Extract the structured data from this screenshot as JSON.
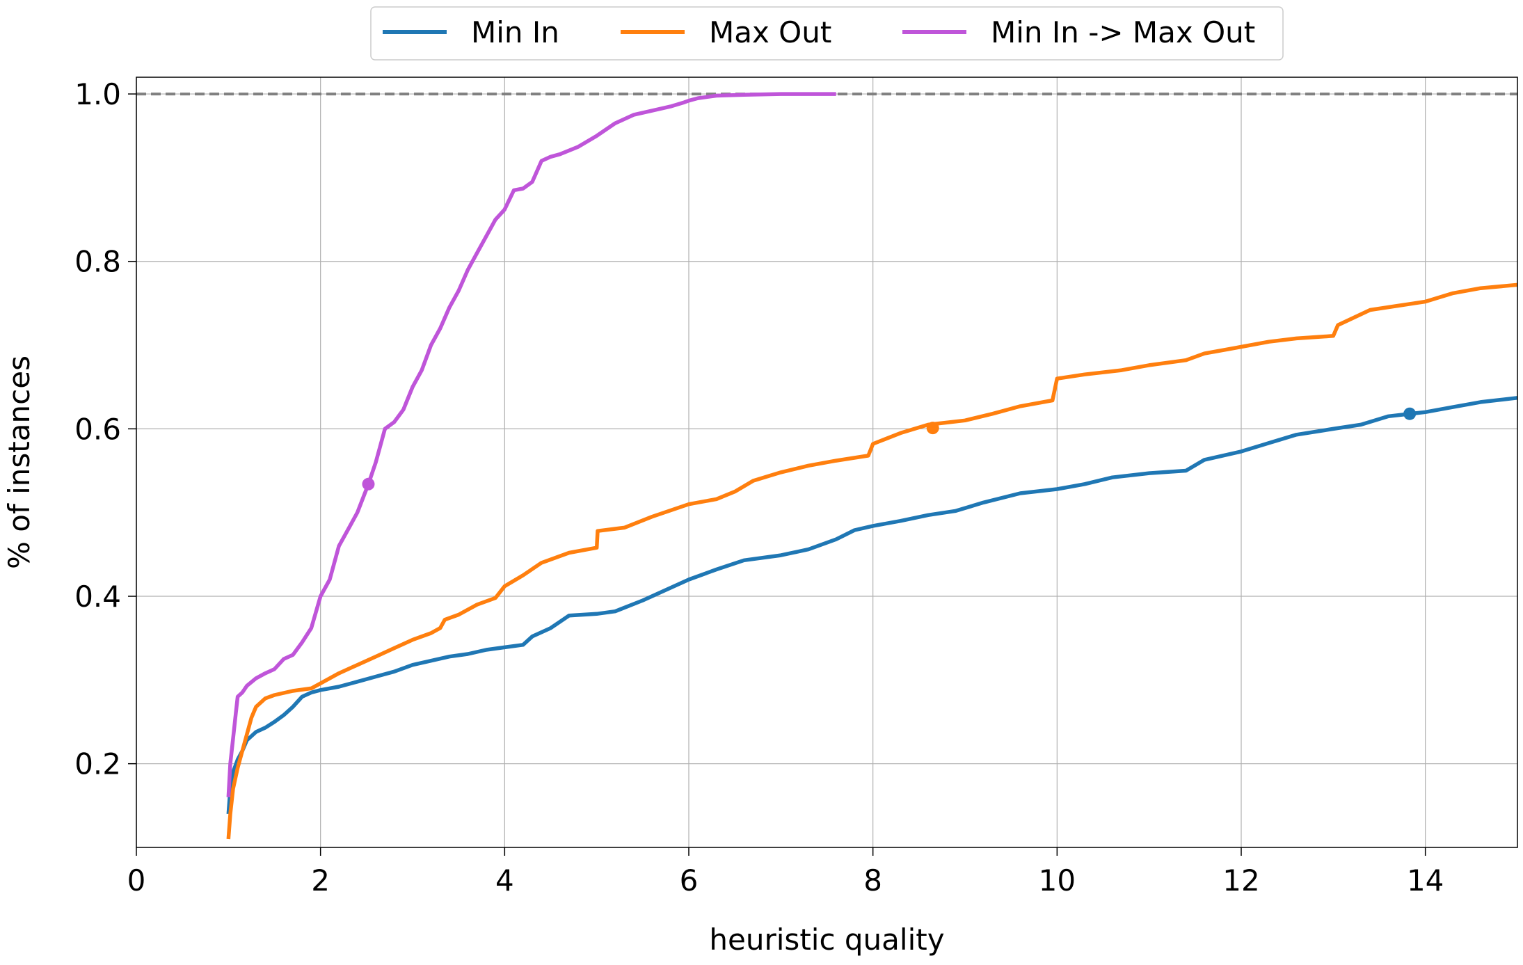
{
  "chart_data": {
    "type": "line",
    "title": "",
    "xlabel": "heuristic quality",
    "ylabel": "% of instances",
    "xlim": [
      0,
      15
    ],
    "ylim": [
      0.1,
      1.02
    ],
    "xticks": [
      0,
      2,
      4,
      6,
      8,
      10,
      12,
      14
    ],
    "yticks": [
      0.2,
      0.4,
      0.6,
      0.8,
      1.0
    ],
    "xtick_labels": [
      "0",
      "2",
      "4",
      "6",
      "8",
      "10",
      "12",
      "14"
    ],
    "ytick_labels": [
      "0.2",
      "0.4",
      "0.6",
      "0.8",
      "1.0"
    ],
    "grid": true,
    "legend_position": "top-center, outside plot",
    "reference_line": {
      "y": 1.0,
      "style": "dashed",
      "color": "#808080"
    },
    "series": [
      {
        "name": "Min In",
        "color": "#1f77b4",
        "marker": {
          "x": 13.83,
          "y": 0.618
        },
        "x": [
          1.0,
          1.02,
          1.05,
          1.1,
          1.15,
          1.2,
          1.3,
          1.4,
          1.5,
          1.6,
          1.7,
          1.8,
          1.9,
          2.0,
          2.2,
          2.4,
          2.6,
          2.8,
          3.0,
          3.2,
          3.4,
          3.6,
          3.8,
          4.0,
          4.2,
          4.3,
          4.5,
          4.7,
          5.0,
          5.2,
          5.5,
          5.8,
          6.0,
          6.3,
          6.6,
          7.0,
          7.3,
          7.6,
          7.8,
          8.0,
          8.3,
          8.6,
          8.9,
          9.2,
          9.6,
          10.0,
          10.3,
          10.6,
          11.0,
          11.4,
          11.6,
          12.0,
          12.3,
          12.6,
          13.0,
          13.3,
          13.6,
          14.0,
          14.3,
          14.6,
          15.0
        ],
        "y": [
          0.14,
          0.17,
          0.19,
          0.205,
          0.215,
          0.228,
          0.238,
          0.243,
          0.25,
          0.258,
          0.268,
          0.28,
          0.285,
          0.288,
          0.292,
          0.298,
          0.304,
          0.31,
          0.318,
          0.323,
          0.328,
          0.331,
          0.336,
          0.339,
          0.342,
          0.352,
          0.362,
          0.377,
          0.379,
          0.382,
          0.395,
          0.41,
          0.42,
          0.432,
          0.443,
          0.449,
          0.456,
          0.468,
          0.479,
          0.484,
          0.49,
          0.497,
          0.502,
          0.512,
          0.523,
          0.528,
          0.534,
          0.542,
          0.547,
          0.55,
          0.563,
          0.573,
          0.583,
          0.593,
          0.6,
          0.605,
          0.615,
          0.62,
          0.626,
          0.632,
          0.637
        ]
      },
      {
        "name": "Max Out",
        "color": "#ff7f0e",
        "marker": {
          "x": 8.65,
          "y": 0.601
        },
        "x": [
          1.0,
          1.02,
          1.05,
          1.1,
          1.15,
          1.2,
          1.25,
          1.3,
          1.4,
          1.5,
          1.7,
          1.9,
          2.0,
          2.2,
          2.4,
          2.6,
          2.8,
          3.0,
          3.2,
          3.3,
          3.35,
          3.5,
          3.7,
          3.9,
          4.0,
          4.2,
          4.4,
          4.7,
          5.0,
          5.01,
          5.3,
          5.6,
          6.0,
          6.3,
          6.5,
          6.7,
          7.0,
          7.3,
          7.6,
          7.95,
          8.0,
          8.3,
          8.6,
          9.0,
          9.3,
          9.6,
          9.95,
          10.0,
          10.3,
          10.7,
          11.0,
          11.4,
          11.6,
          12.0,
          12.3,
          12.6,
          13.0,
          13.05,
          13.4,
          13.7,
          14.0,
          14.3,
          14.6,
          15.0
        ],
        "y": [
          0.11,
          0.14,
          0.17,
          0.195,
          0.215,
          0.235,
          0.255,
          0.268,
          0.278,
          0.282,
          0.287,
          0.29,
          0.296,
          0.308,
          0.318,
          0.328,
          0.338,
          0.348,
          0.356,
          0.362,
          0.372,
          0.378,
          0.39,
          0.398,
          0.412,
          0.425,
          0.44,
          0.452,
          0.458,
          0.478,
          0.482,
          0.495,
          0.51,
          0.516,
          0.525,
          0.538,
          0.548,
          0.556,
          0.562,
          0.568,
          0.582,
          0.595,
          0.605,
          0.61,
          0.618,
          0.627,
          0.634,
          0.66,
          0.665,
          0.67,
          0.676,
          0.682,
          0.69,
          0.698,
          0.704,
          0.708,
          0.711,
          0.724,
          0.742,
          0.747,
          0.752,
          0.762,
          0.768,
          0.772
        ]
      },
      {
        "name": "Min In -> Max Out",
        "color": "#bf55d9",
        "marker": {
          "x": 2.52,
          "y": 0.534
        },
        "x": [
          1.0,
          1.02,
          1.05,
          1.08,
          1.1,
          1.15,
          1.2,
          1.3,
          1.4,
          1.5,
          1.6,
          1.7,
          1.8,
          1.9,
          2.0,
          2.1,
          2.2,
          2.3,
          2.4,
          2.52,
          2.6,
          2.7,
          2.8,
          2.9,
          3.0,
          3.1,
          3.2,
          3.3,
          3.4,
          3.5,
          3.6,
          3.7,
          3.8,
          3.9,
          4.0,
          4.1,
          4.2,
          4.3,
          4.4,
          4.5,
          4.6,
          4.8,
          5.0,
          5.2,
          5.4,
          5.6,
          5.8,
          5.95,
          6.0,
          6.1,
          6.3,
          6.6,
          7.0,
          7.3,
          7.6
        ],
        "y": [
          0.16,
          0.2,
          0.23,
          0.26,
          0.28,
          0.285,
          0.293,
          0.302,
          0.308,
          0.313,
          0.325,
          0.33,
          0.345,
          0.362,
          0.4,
          0.42,
          0.46,
          0.48,
          0.5,
          0.534,
          0.56,
          0.6,
          0.608,
          0.623,
          0.65,
          0.67,
          0.7,
          0.72,
          0.745,
          0.765,
          0.79,
          0.81,
          0.83,
          0.85,
          0.862,
          0.885,
          0.887,
          0.895,
          0.92,
          0.925,
          0.928,
          0.937,
          0.95,
          0.965,
          0.975,
          0.98,
          0.985,
          0.99,
          0.992,
          0.995,
          0.998,
          0.999,
          1.0,
          1.0,
          1.0
        ]
      }
    ]
  }
}
